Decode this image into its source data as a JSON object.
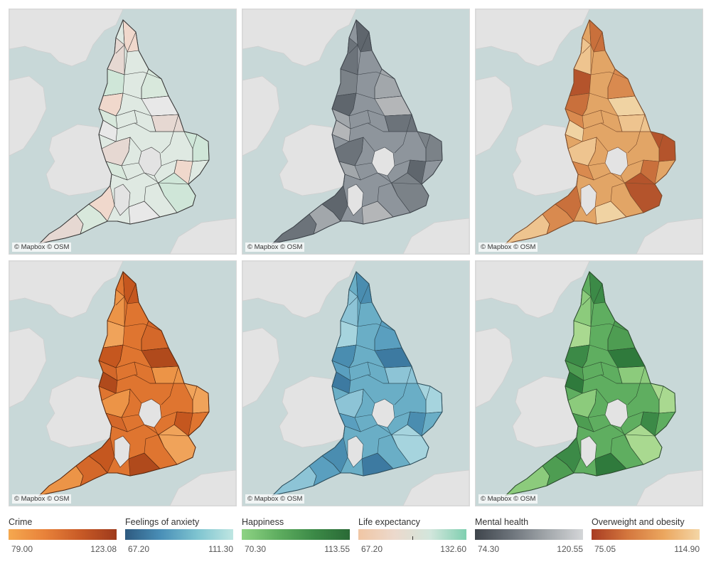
{
  "attribution": "© Mapbox © OSM",
  "maps": [
    {
      "id": "crime",
      "fill": "#dfe9e2",
      "stroke": "#3a3a3a",
      "land": "#e3e3e3",
      "sea": "#c8d8d8",
      "accents": [
        "#f0d8cc",
        "#e6d8d2",
        "#d8e8dc",
        "#cfe6d8",
        "#e8e8e8"
      ]
    },
    {
      "id": "mental-health",
      "fill": "#8e959c",
      "stroke": "#3f454c",
      "land": "#e3e3e3",
      "sea": "#c8d8d8",
      "accents": [
        "#5f666d",
        "#6c737a",
        "#a2a7ab",
        "#7b8288",
        "#b4b6b8"
      ]
    },
    {
      "id": "overweight-obesity",
      "fill": "#e2a566",
      "stroke": "#7a4a2a",
      "land": "#e3e3e3",
      "sea": "#c8d8d8",
      "accents": [
        "#c9703c",
        "#eec48f",
        "#d98a4f",
        "#b4542c",
        "#f0d3a3"
      ]
    },
    {
      "id": "life-expectancy",
      "fill": "#df7530",
      "stroke": "#5a2a10",
      "land": "#e3e3e3",
      "sea": "#c8d8d8",
      "accents": [
        "#c5571f",
        "#ec9447",
        "#d4682a",
        "#f0a35a",
        "#b04a1c"
      ]
    },
    {
      "id": "feelings-anxiety",
      "fill": "#6aaec6",
      "stroke": "#2e4f5d",
      "land": "#e3e3e3",
      "sea": "#c8d8d8",
      "accents": [
        "#4a8db0",
        "#8dc4d6",
        "#5a9fbf",
        "#a6d4de",
        "#3d7aa1"
      ]
    },
    {
      "id": "happiness",
      "fill": "#5fae60",
      "stroke": "#2d4d2f",
      "land": "#e3e3e3",
      "sea": "#c8d8d8",
      "accents": [
        "#3c8a47",
        "#8ccb7c",
        "#4e9d52",
        "#a9d990",
        "#2f7a3c"
      ]
    }
  ],
  "legends": [
    {
      "title": "Crime",
      "min": "79.00",
      "max": "123.08",
      "colors": [
        "#f5a84f",
        "#e8823a",
        "#c85a26",
        "#9e3a1c"
      ]
    },
    {
      "title": "Feelings of anxiety",
      "min": "67.20",
      "max": "111.30",
      "colors": [
        "#2e5a80",
        "#4a90b8",
        "#7ec4d0",
        "#bfe6e2"
      ]
    },
    {
      "title": "Happiness",
      "min": "70.30",
      "max": "113.55",
      "colors": [
        "#8ed384",
        "#5fae60",
        "#3c8a47",
        "#2a6a36"
      ]
    },
    {
      "title": "Life expectancy",
      "min": "67.20",
      "max": "132.60",
      "colors": [
        "#f0c6a4",
        "#ecd9cc",
        "#d2e6dc",
        "#7fcfb0"
      ]
    },
    {
      "title": "Mental health",
      "min": "74.30",
      "max": "120.55",
      "colors": [
        "#3f454c",
        "#6c737a",
        "#a2a7ab",
        "#d4d6d8"
      ]
    },
    {
      "title": "Overweight and obesity",
      "min": "75.05",
      "max": "114.90",
      "colors": [
        "#a83c22",
        "#d4773e",
        "#eba65e",
        "#f4d6a6"
      ]
    }
  ]
}
